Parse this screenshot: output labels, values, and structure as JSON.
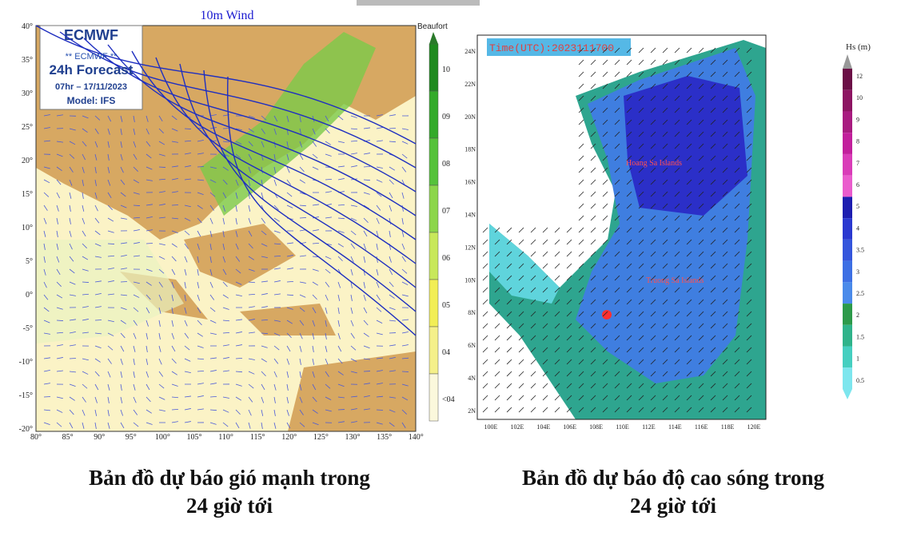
{
  "wind_map": {
    "title": "10m Wind",
    "legend_title": "Beaufort",
    "logo": "ECMWF",
    "box_lines": [
      "** ECMWF **",
      "24h Forecast",
      "07hr – 17/11/2023",
      "Model: IFS"
    ],
    "legend_labels": [
      "10",
      "09",
      "08",
      "07",
      "06",
      "05",
      "04",
      "<04"
    ],
    "lat_labels": [
      "40°",
      "35°",
      "30°",
      "25°",
      "20°",
      "15°",
      "10°",
      "5°",
      "0°",
      "-5°",
      "-10°",
      "-15°",
      "-20°"
    ],
    "lon_labels": [
      "80°",
      "85°",
      "90°",
      "95°",
      "100°",
      "105°",
      "110°",
      "115°",
      "120°",
      "125°",
      "130°",
      "135°",
      "140°"
    ]
  },
  "wave_map": {
    "time": "Time(UTC):2023111700",
    "places": [
      "Hoang Sa Islands",
      "Truong Sa Islands"
    ],
    "legend_title": "Hs (m)",
    "legend_labels": [
      "12",
      "10",
      "9",
      "8",
      "7",
      "6",
      "5",
      "4",
      "3.5",
      "3",
      "2.5",
      "2",
      "1.5",
      "1",
      "0.5"
    ],
    "lat_labels": [
      "24N",
      "22N",
      "20N",
      "18N",
      "16N",
      "14N",
      "12N",
      "10N",
      "8N",
      "6N",
      "4N",
      "2N"
    ],
    "lon_labels": [
      "100E",
      "102E",
      "104E",
      "106E",
      "108E",
      "110E",
      "112E",
      "114E",
      "116E",
      "118E",
      "120E"
    ]
  },
  "captions": {
    "left": [
      "Bản đồ dự báo gió mạnh trong",
      "24 giờ tới"
    ],
    "right": [
      "Bản đồ dự báo độ cao sóng trong",
      "24 giờ tới"
    ]
  }
}
